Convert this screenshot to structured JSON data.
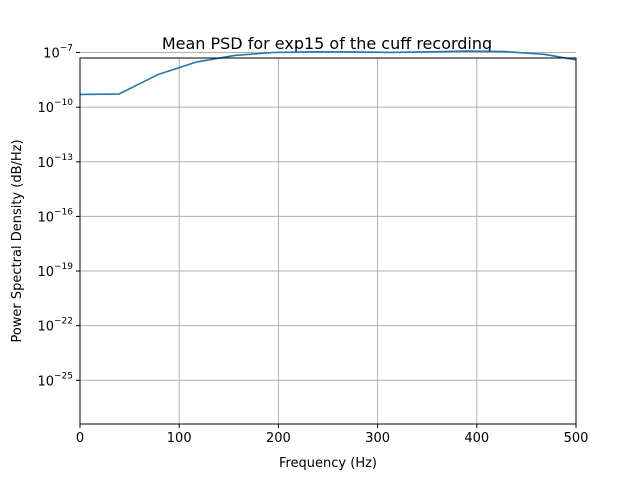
{
  "chart_data": {
    "type": "line",
    "title": "Mean PSD for exp15 of the cuff recording",
    "xlabel": "Frequency (Hz)",
    "ylabel": "Power Spectral Density (dB/Hz)",
    "xlim": [
      0,
      500
    ],
    "ylim_exponent": [
      -27.4,
      -7.3
    ],
    "yscale": "log",
    "grid": true,
    "x_ticks": [
      {
        "value": 0,
        "label": "0"
      },
      {
        "value": 100,
        "label": "100"
      },
      {
        "value": 200,
        "label": "200"
      },
      {
        "value": 300,
        "label": "300"
      },
      {
        "value": 400,
        "label": "400"
      },
      {
        "value": 500,
        "label": "500"
      }
    ],
    "y_ticks": [
      {
        "exponent": -7,
        "base": "10",
        "sup": "−7"
      },
      {
        "exponent": -10,
        "base": "10",
        "sup": "−10"
      },
      {
        "exponent": -13,
        "base": "10",
        "sup": "−13"
      },
      {
        "exponent": -16,
        "base": "10",
        "sup": "−16"
      },
      {
        "exponent": -19,
        "base": "10",
        "sup": "−19"
      },
      {
        "exponent": -22,
        "base": "10",
        "sup": "−22"
      },
      {
        "exponent": -25,
        "base": "10",
        "sup": "−25"
      }
    ],
    "series": [
      {
        "color": "#1f77b4",
        "x": [
          0,
          39,
          78,
          117,
          156,
          195,
          234,
          273,
          312,
          351,
          390,
          429,
          468,
          500
        ],
        "y": [
          5e-10,
          5.2e-10,
          6e-09,
          3e-08,
          7e-08,
          1e-07,
          1.1e-07,
          1.08e-07,
          1.02e-07,
          1.1e-07,
          1.2e-07,
          1.12e-07,
          8e-08,
          4e-08
        ]
      }
    ]
  }
}
